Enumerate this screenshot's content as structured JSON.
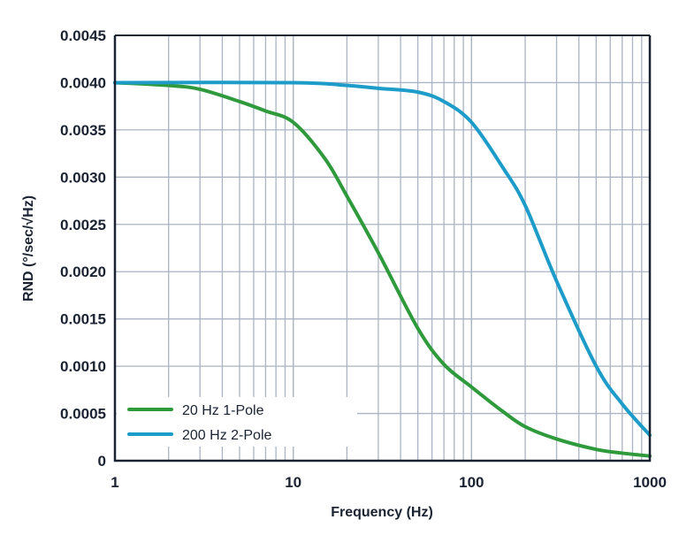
{
  "chart_data": {
    "type": "line",
    "title": "",
    "xlabel": "Frequency (Hz)",
    "ylabel": "RND (°/sec/√Hz)",
    "xscale": "log",
    "xlim": [
      1,
      1000
    ],
    "ylim": [
      0,
      0.0045
    ],
    "x_ticks": [
      "1",
      "10",
      "100",
      "1000"
    ],
    "x_tick_values": [
      1,
      10,
      100,
      1000
    ],
    "y_ticks": [
      "0",
      "0.0005",
      "0.0010",
      "0.0015",
      "0.0020",
      "0.0025",
      "0.0030",
      "0.0035",
      "0.0040",
      "0.0045"
    ],
    "y_tick_values": [
      0,
      0.0005,
      0.001,
      0.0015,
      0.002,
      0.0025,
      0.003,
      0.0035,
      0.004,
      0.0045
    ],
    "grid": true,
    "legend_position": "bottom-left",
    "series": [
      {
        "name": "20 Hz 1-Pole",
        "color": "#2f9a3c",
        "x": [
          1,
          2,
          3,
          5,
          7,
          10,
          15,
          20,
          30,
          50,
          70,
          100,
          150,
          200,
          300,
          500,
          700,
          1000
        ],
        "y": [
          0.004,
          0.00397,
          0.00393,
          0.0038,
          0.0037,
          0.00358,
          0.0032,
          0.0028,
          0.0022,
          0.0014,
          0.00102,
          0.00078,
          0.00052,
          0.00036,
          0.00023,
          0.00012,
          8e-05,
          5e-05
        ]
      },
      {
        "name": "200 Hz 2-Pole",
        "color": "#1d9bc9",
        "x": [
          1,
          10,
          20,
          30,
          50,
          70,
          100,
          150,
          200,
          300,
          500,
          700,
          1000
        ],
        "y": [
          0.004,
          0.004,
          0.00397,
          0.00394,
          0.0039,
          0.0038,
          0.00358,
          0.0031,
          0.0027,
          0.0019,
          0.001,
          0.0006,
          0.00027
        ]
      }
    ]
  }
}
